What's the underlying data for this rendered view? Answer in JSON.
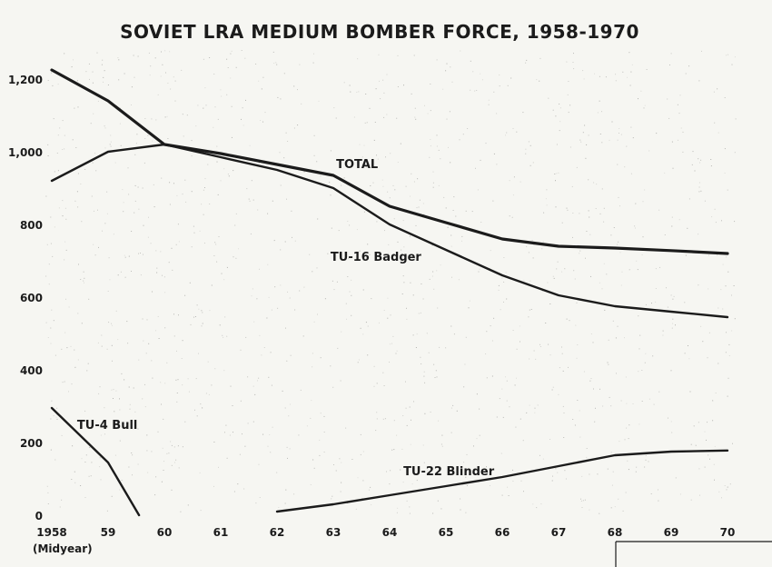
{
  "chart_data": {
    "type": "line",
    "title": "SOVIET LRA MEDIUM BOMBER FORCE, 1958-1970",
    "xlabel": "",
    "ylabel": "",
    "x_start_label_note": "(Midyear)",
    "x": [
      1958,
      1959,
      1960,
      1961,
      1962,
      1963,
      1964,
      1965,
      1966,
      1967,
      1968,
      1969,
      1970
    ],
    "x_tick_labels": [
      "1958",
      "59",
      "60",
      "61",
      "62",
      "63",
      "64",
      "65",
      "66",
      "67",
      "68",
      "69",
      "70"
    ],
    "y_ticks": [
      0,
      200,
      400,
      600,
      800,
      1000,
      1200
    ],
    "y_tick_labels": [
      "0",
      "200",
      "400",
      "600",
      "800",
      "1,000",
      "1,200"
    ],
    "xlim": [
      1958,
      1970
    ],
    "ylim": [
      0,
      1300
    ],
    "grid": false,
    "series": [
      {
        "name": "TOTAL",
        "points": [
          [
            1958,
            1225
          ],
          [
            1959,
            1140
          ],
          [
            1960,
            1020
          ],
          [
            1961,
            995
          ],
          [
            1962,
            965
          ],
          [
            1963,
            935
          ],
          [
            1964,
            850
          ],
          [
            1965,
            805
          ],
          [
            1966,
            760
          ],
          [
            1967,
            740
          ],
          [
            1968,
            735
          ],
          [
            1969,
            728
          ],
          [
            1970,
            720
          ]
        ]
      },
      {
        "name": "TU-16 Badger",
        "points": [
          [
            1958,
            920
          ],
          [
            1959,
            1000
          ],
          [
            1960,
            1020
          ],
          [
            1961,
            985
          ],
          [
            1962,
            950
          ],
          [
            1963,
            900
          ],
          [
            1964,
            800
          ],
          [
            1965,
            730
          ],
          [
            1966,
            660
          ],
          [
            1967,
            605
          ],
          [
            1968,
            575
          ],
          [
            1969,
            560
          ],
          [
            1970,
            545
          ]
        ]
      },
      {
        "name": "TU-4 Bull",
        "points": [
          [
            1958,
            295
          ],
          [
            1959,
            145
          ],
          [
            1959.55,
            0
          ]
        ]
      },
      {
        "name": "TU-22 Blinder",
        "points": [
          [
            1962,
            10
          ],
          [
            1963,
            30
          ],
          [
            1964,
            55
          ],
          [
            1965,
            80
          ],
          [
            1966,
            105
          ],
          [
            1967,
            135
          ],
          [
            1968,
            165
          ],
          [
            1969,
            175
          ],
          [
            1970,
            178
          ]
        ]
      }
    ]
  }
}
